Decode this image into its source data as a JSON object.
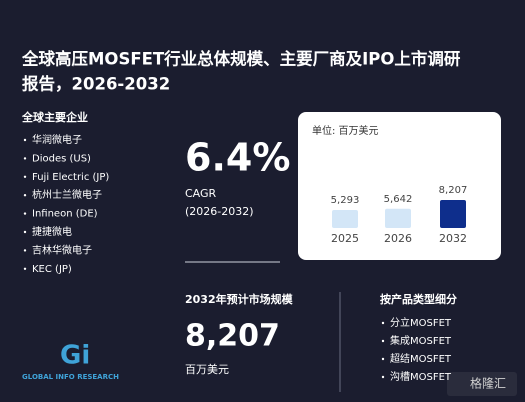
{
  "title_lines": [
    "全球高压MOSFET行业总体规模、主要厂商及IPO上市调研",
    "报告，2026-2032"
  ],
  "companies": {
    "heading": "全球主要企业",
    "items": [
      "华润微电子",
      "Diodes (US)",
      "Fuji Electric (JP)",
      "杭州士兰微电子",
      "Infineon (DE)",
      "捷捷微电",
      "吉林华微电子",
      "KEC (JP)"
    ]
  },
  "cagr": {
    "value": "6.4%",
    "label": "CAGR",
    "period": "(2026-2032)"
  },
  "market": {
    "heading": "2032年预计市场规模",
    "value": "8,207",
    "unit": "百万美元"
  },
  "segments": {
    "heading": "按产品类型细分",
    "items": [
      "分立MOSFET",
      "集成MOSFET",
      "超结MOSFET",
      "沟槽MOSFET"
    ]
  },
  "branding": {
    "logo": "Gi",
    "logo_text": "GLOBAL INFO RESEARCH",
    "watermark": "格隆汇"
  },
  "chart_data": {
    "type": "bar",
    "unit_label": "单位: 百万美元",
    "categories": [
      "2025",
      "2026",
      "2032"
    ],
    "values": [
      5293,
      5642,
      8207
    ],
    "value_labels": [
      "5,293",
      "5,642",
      "8,207"
    ],
    "colors": [
      "#d3e6f7",
      "#d3e6f7",
      "#0e2e8c"
    ]
  }
}
